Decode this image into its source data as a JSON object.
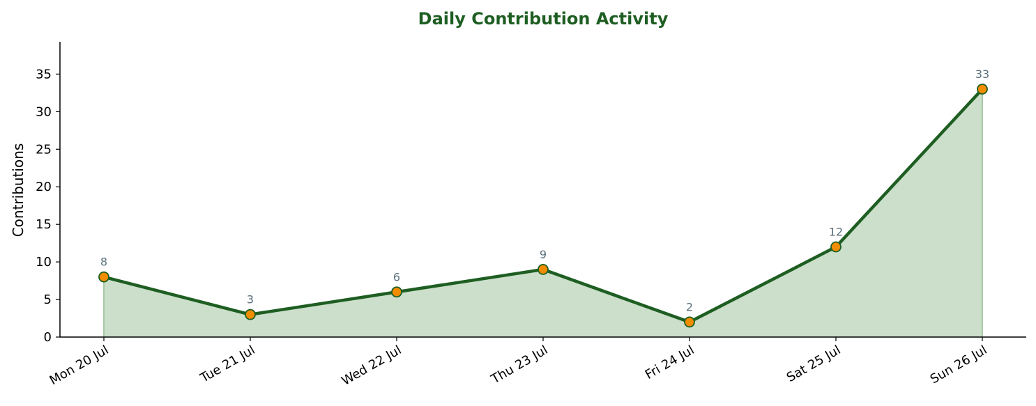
{
  "chart_data": {
    "type": "area",
    "title": "Daily Contribution Activity",
    "xlabel": "",
    "ylabel": "Contributions",
    "categories": [
      "Mon 20 Jul",
      "Tue 21 Jul",
      "Wed 22 Jul",
      "Thu 23 Jul",
      "Fri 24 Jul",
      "Sat 25 Jul",
      "Sun 26 Jul"
    ],
    "series": [
      {
        "values": [
          8,
          3,
          6,
          9,
          2,
          12,
          33
        ]
      }
    ],
    "ylim": [
      0,
      39.3
    ],
    "yticks": [
      0,
      5,
      10,
      15,
      20,
      25,
      30,
      35
    ],
    "data_labels": true,
    "grid": false,
    "legend": "none"
  },
  "colors": {
    "title": "#1e5e22",
    "line": "#1e5e22",
    "fill": "#cbdfca",
    "fill_edge": "#a8c9a6",
    "marker_fill": "#f28c00",
    "marker_edge": "#1e5e22",
    "data_label": "#5a6f7c",
    "axis": "#000000"
  }
}
